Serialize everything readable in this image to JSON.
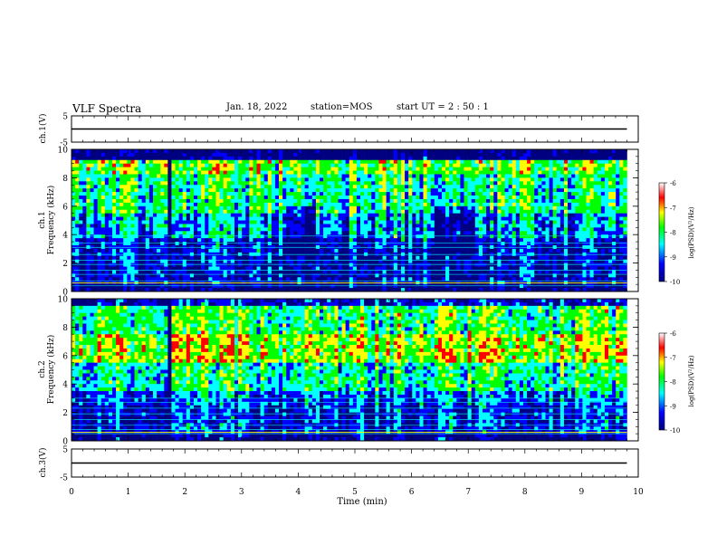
{
  "header": {
    "title": "VLF Spectra",
    "date": "Jan. 18, 2022",
    "station": "station=MOS",
    "start_ut": "start UT =  2 : 50 : 1"
  },
  "chart_data": [
    {
      "type": "line",
      "name": "ch1-voltage",
      "ylabel": "ch.1(V)",
      "ylim": [
        -5,
        5
      ],
      "y_ticks": [
        "5",
        "-5"
      ],
      "y_level": 0
    },
    {
      "type": "heatmap",
      "name": "ch1-spectrogram",
      "ylabel": "ch.1\nFrequency (kHz)",
      "ylim": [
        0,
        10
      ],
      "y_ticks": [
        "0",
        "2",
        "4",
        "6",
        "8",
        "10"
      ],
      "data_end_min": 9.8,
      "dark_gaps_min": [
        1.72
      ],
      "bright_bands_min": [
        7.4
      ],
      "colorbar": {
        "label": "log(PSD)(V²/Hz)",
        "range": [
          -10,
          -6
        ],
        "ticks": [
          "-6",
          "-7",
          "-8",
          "-9",
          "-10"
        ]
      }
    },
    {
      "type": "heatmap",
      "name": "ch2-spectrogram",
      "ylabel": "ch.2\nFrequency (kHz)",
      "ylim": [
        0,
        10
      ],
      "y_ticks": [
        "0",
        "2",
        "4",
        "6",
        "8",
        "10"
      ],
      "data_end_min": 9.8,
      "dark_gaps_min": [
        1.72
      ],
      "bright_bands_min": [
        7.4
      ],
      "colorbar": {
        "label": "log(PSD)(V²/Hz)",
        "range": [
          -10,
          -6
        ],
        "ticks": [
          "-6",
          "-7",
          "-8",
          "-9",
          "-10"
        ]
      }
    },
    {
      "type": "line",
      "name": "ch3-voltage",
      "ylabel": "ch.3(V)",
      "ylim": [
        -5,
        5
      ],
      "y_ticks": [
        "5",
        "-5"
      ],
      "y_level": 0
    }
  ],
  "x_axis": {
    "label": "Time (min)",
    "range": [
      0,
      10
    ],
    "ticks": [
      "0",
      "1",
      "2",
      "3",
      "4",
      "5",
      "6",
      "7",
      "8",
      "9",
      "10"
    ]
  },
  "colors": {
    "colormap": [
      "#000080",
      "#0000ff",
      "#00ffff",
      "#00ff00",
      "#ffff00",
      "#ff0000",
      "#ffffff"
    ]
  }
}
